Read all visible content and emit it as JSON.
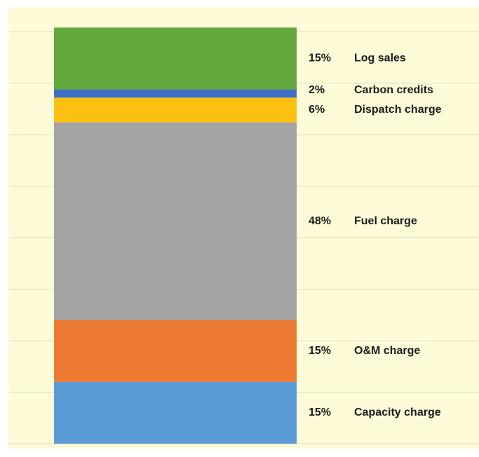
{
  "chart_data": {
    "type": "stacked-bar",
    "categories": [
      null
    ],
    "series": [
      {
        "name": "Capacity charge",
        "color": "#5b9bd5",
        "values": [
          15
        ],
        "value_labels": [
          "15%"
        ]
      },
      {
        "name": "O&M charge",
        "color": "#ed7a32",
        "values": [
          15
        ],
        "value_labels": [
          "15%"
        ]
      },
      {
        "name": "Fuel charge",
        "color": "#a3a3a3",
        "values": [
          48
        ],
        "value_labels": [
          "48%"
        ]
      },
      {
        "name": "Dispatch charge",
        "color": "#fbc012",
        "values": [
          6
        ],
        "value_labels": [
          "6%"
        ]
      },
      {
        "name": "Carbon credits",
        "color": "#3d6fc6",
        "values": [
          2
        ],
        "value_labels": [
          "2%"
        ]
      },
      {
        "name": "Log sales",
        "color": "#63a83c",
        "values": [
          15
        ],
        "value_labels": [
          "15%"
        ]
      }
    ],
    "ylim": [
      0,
      106
    ],
    "yticks": [
      0,
      12.5,
      25,
      37.5,
      50,
      62.5,
      75,
      87.5,
      100
    ],
    "grid": true,
    "background": "#fefbd9"
  }
}
